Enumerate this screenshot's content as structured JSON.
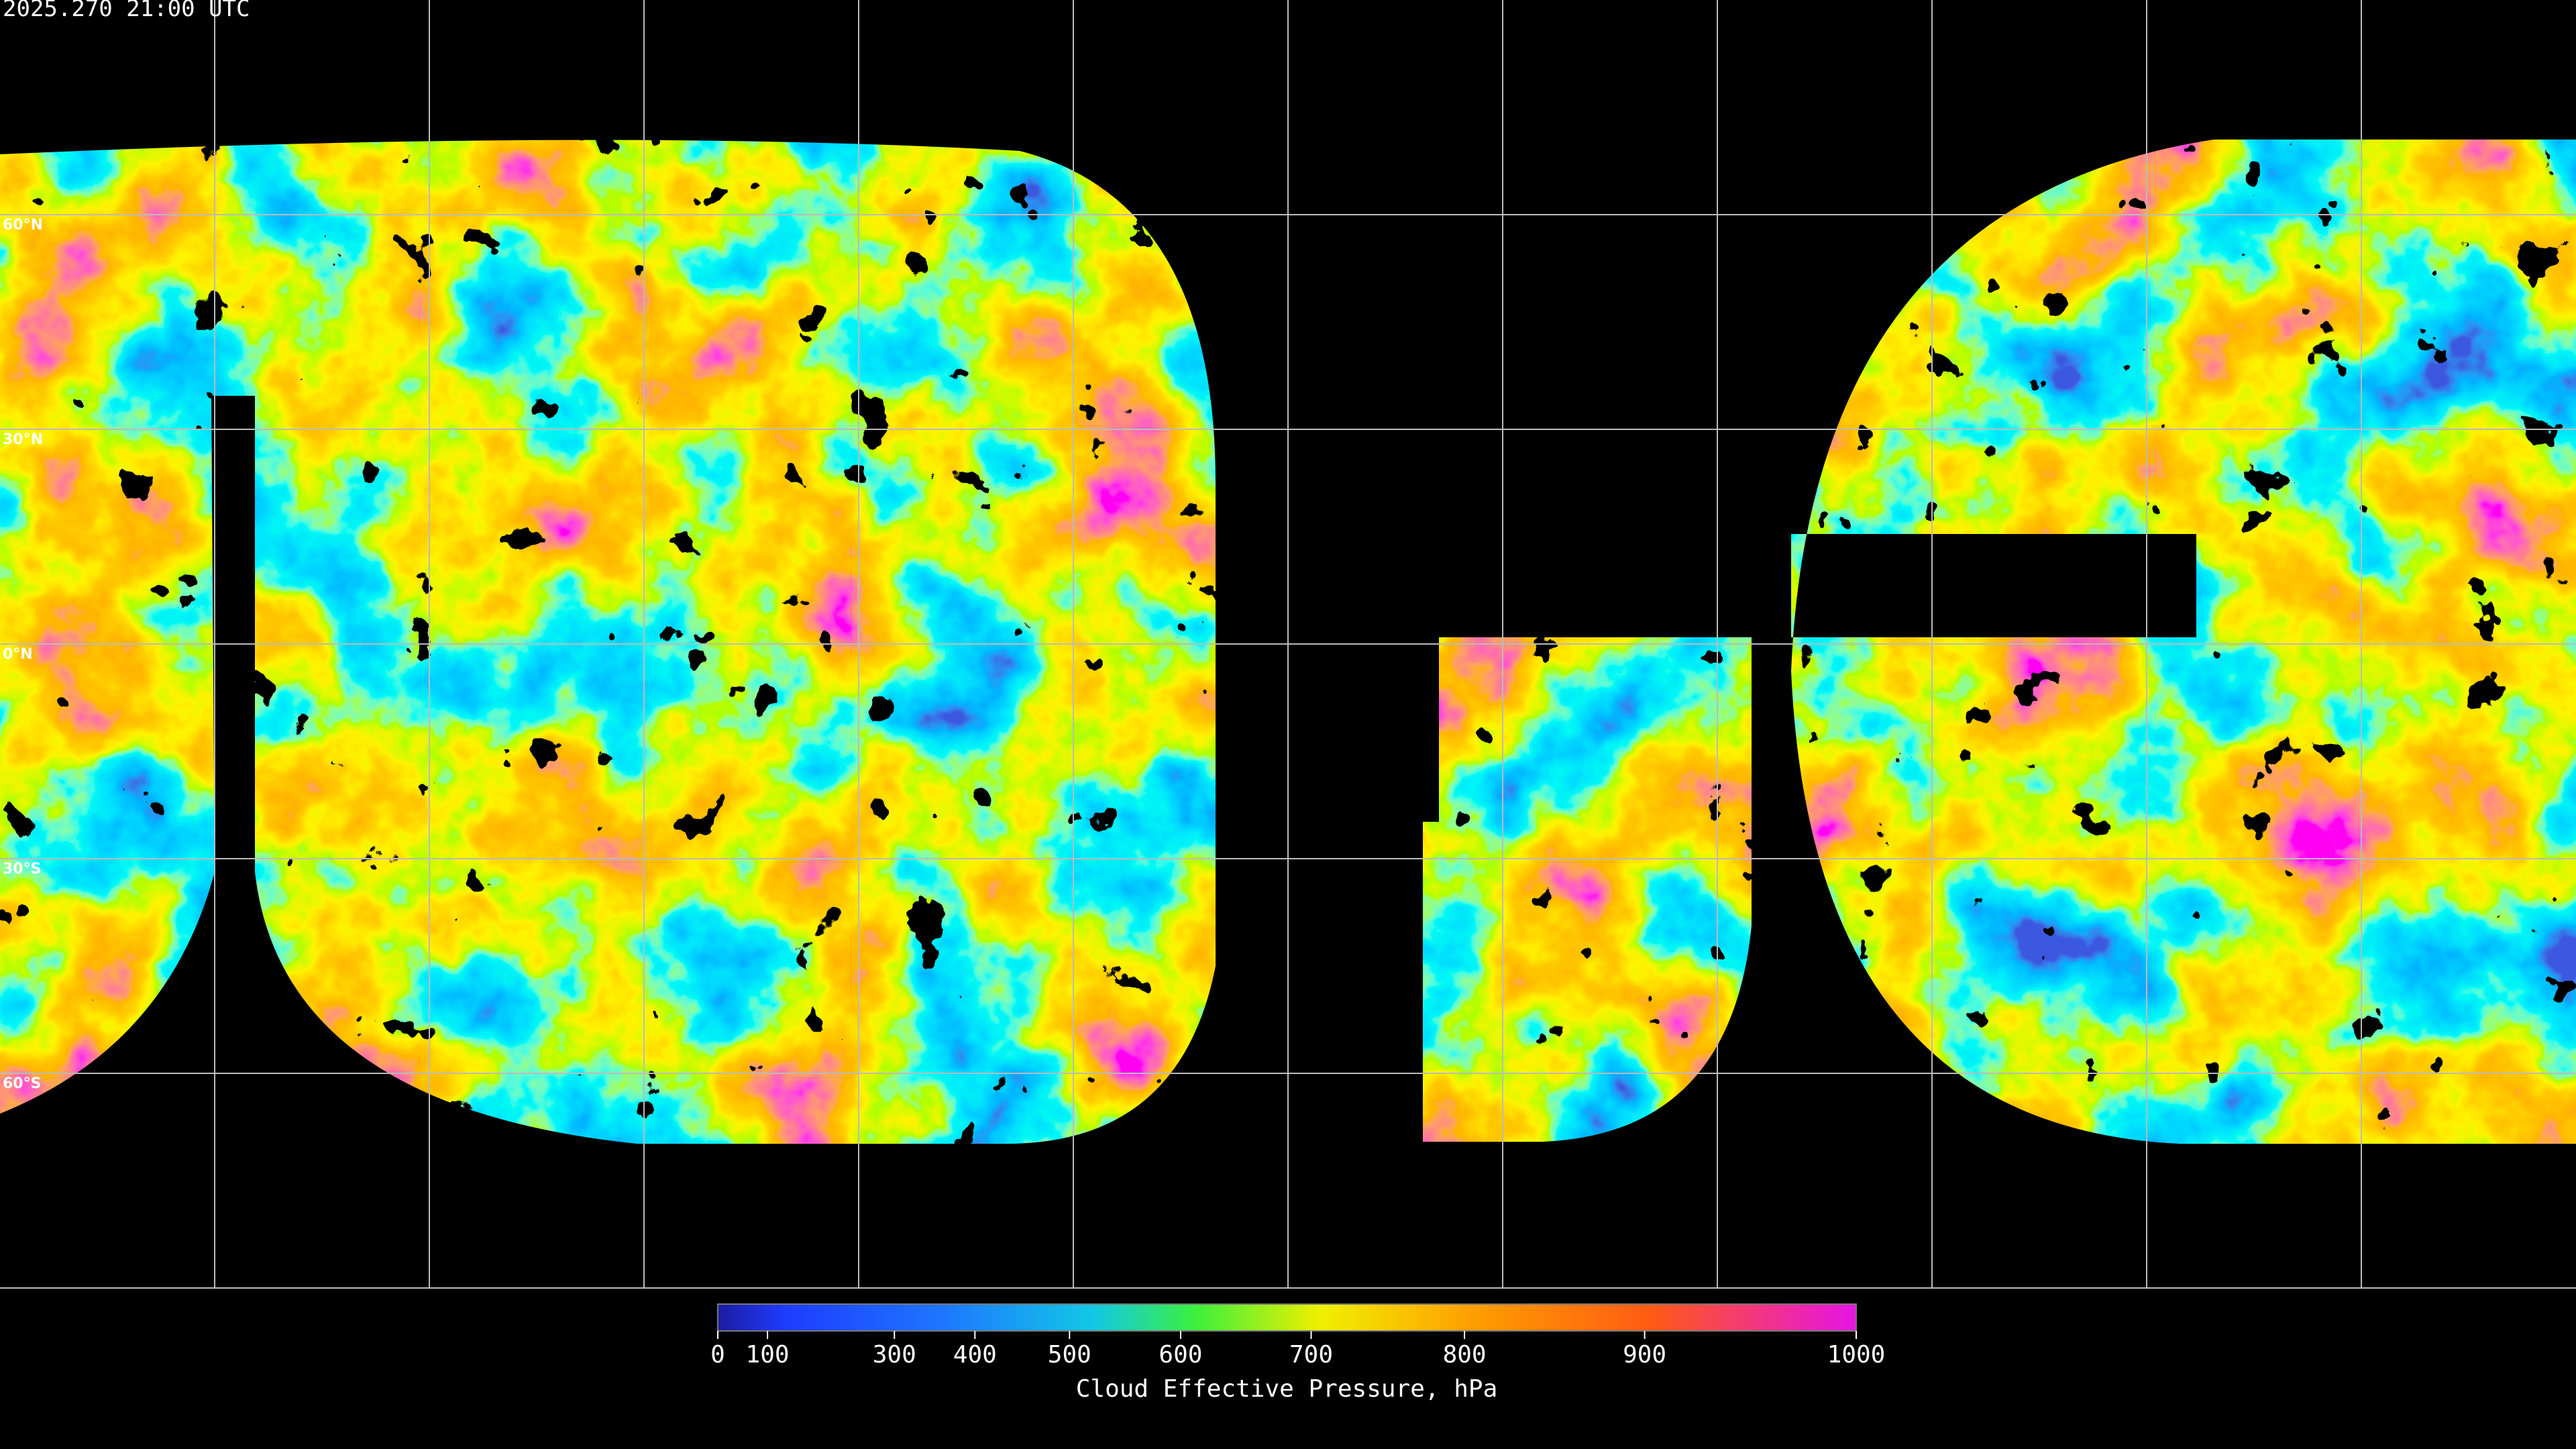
{
  "header": {
    "timestamp": "2025.270 21:00 UTC"
  },
  "map": {
    "lat_labels": [
      "60°N",
      "30°N",
      "0°N",
      "30°S",
      "60°S"
    ]
  },
  "colorbar": {
    "title": "Cloud Effective Pressure, hPa",
    "ticks": [
      0,
      100,
      300,
      400,
      500,
      600,
      700,
      800,
      900,
      1000
    ]
  }
}
